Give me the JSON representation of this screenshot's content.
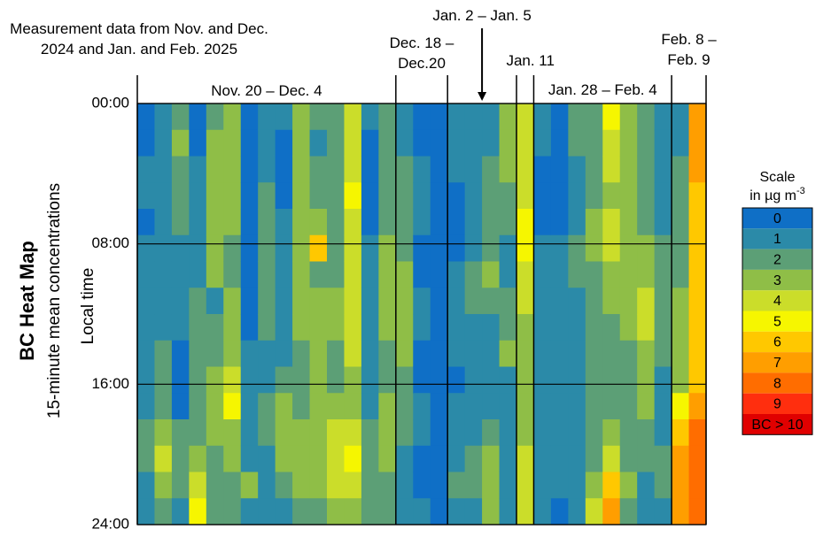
{
  "chart_data": {
    "type": "heatmap",
    "title": "Measurement data from Nov. and Dec. 2024 and Jan. and Feb. 2025",
    "heading": "BC Heat Map",
    "subheading": "15-minute mean concentrations",
    "ylabel": "Local time",
    "ylim": [
      0,
      24
    ],
    "yticks": [
      {
        "value": 0,
        "label": "00:00"
      },
      {
        "value": 8,
        "label": "08:00"
      },
      {
        "value": 16,
        "label": "16:00"
      },
      {
        "value": 24,
        "label": "24:00"
      }
    ],
    "groups": [
      {
        "label": "Nov. 20 – Dec. 4",
        "values": [
          [
            0.5,
            0.5,
            1,
            1,
            0.5,
            1,
            1,
            1,
            1,
            1,
            1.5,
            1.5,
            2,
            2,
            1.5,
            1
          ],
          [
            1,
            1,
            1,
            1.5,
            1.5,
            1,
            1,
            1.5,
            1.5,
            2,
            2,
            2.5,
            3,
            4,
            3,
            2.5
          ],
          [
            2.5,
            3,
            2,
            2,
            2,
            1.5,
            1.5,
            1.5,
            1,
            0.5,
            0.5,
            0.5,
            2,
            2,
            2,
            1.5
          ],
          [
            0.5,
            0.5,
            1,
            1,
            1,
            1.5,
            1.5,
            2,
            2,
            2.5,
            2,
            2,
            2.5,
            3,
            4,
            5
          ],
          [
            2.5,
            3,
            3,
            3,
            3,
            3.5,
            3,
            1.5,
            2,
            2.5,
            3,
            3,
            3,
            2,
            2,
            2
          ],
          [
            3,
            3,
            3.5,
            3.5,
            3,
            2.5,
            2.5,
            3,
            3,
            3,
            4,
            5.5,
            3.5,
            3,
            2.5,
            2
          ],
          [
            0.5,
            0.5,
            0.5,
            0.5,
            0.5,
            0.5,
            0.5,
            0.5,
            0.5,
            1,
            1,
            1,
            1,
            1,
            3,
            1
          ],
          [
            1,
            1.5,
            1.5,
            2,
            2,
            2,
            2,
            2,
            2,
            1.5,
            1.5,
            2,
            2,
            1.5,
            1,
            1
          ],
          [
            1,
            0.5,
            0.5,
            0.5,
            1,
            1,
            1,
            1.5,
            1.5,
            1.5,
            2,
            3,
            3,
            3,
            2,
            1.5
          ],
          [
            3,
            3,
            3,
            3,
            3,
            3.5,
            3.5,
            3.5,
            3,
            2,
            2,
            2.5,
            3,
            3,
            3,
            2
          ],
          [
            2,
            1,
            2,
            2.5,
            3,
            6,
            2.5,
            3,
            3.5,
            3,
            3,
            3,
            3,
            3,
            3,
            2.5
          ],
          [
            2,
            2,
            2,
            2.5,
            2.5,
            2.5,
            2.5,
            3,
            3,
            2.5,
            2.5,
            3.5,
            4,
            4,
            4,
            3
          ],
          [
            4.5,
            4.5,
            4.5,
            5,
            4.5,
            4.5,
            4,
            4,
            4,
            4,
            3.5,
            3.5,
            4,
            5.5,
            4,
            3.5
          ],
          [
            1,
            0.5,
            0.5,
            0.5,
            0.5,
            1,
            1,
            1,
            1,
            1,
            1,
            1.5,
            2,
            2,
            2,
            2
          ],
          [
            2,
            2,
            2,
            2.5,
            2.5,
            3,
            3,
            3.5,
            3,
            2.5,
            2,
            3,
            3.5,
            3,
            2.5,
            2
          ]
        ]
      },
      {
        "label": "Dec. 18 – Dec.20",
        "values": [
          [
            1.5,
            1.5,
            2,
            2,
            2.5,
            2.5,
            3,
            3.5,
            3.5,
            3,
            2.5,
            2,
            2,
            1.5,
            1.5,
            1.5
          ],
          [
            0.5,
            0.5,
            1,
            1,
            1,
            0.5,
            0.5,
            1,
            1,
            0.5,
            0.5,
            1,
            1,
            0.5,
            0.5,
            1
          ],
          [
            0.5,
            0.5,
            0.5,
            0.5,
            0.5,
            0.5,
            0.5,
            0.5,
            0.5,
            0.5,
            0.5,
            0.5,
            0.5,
            0.5,
            0.5,
            0.5
          ]
        ]
      },
      {
        "label": "Jan. 2 – Jan. 5",
        "values": [
          [
            1,
            1,
            1,
            0.5,
            0.5,
            0.5,
            1,
            1,
            1,
            1,
            0.5,
            1,
            1.5,
            1.5,
            2,
            1.5
          ],
          [
            1,
            1,
            1.5,
            1.5,
            1.5,
            1.5,
            2,
            2,
            1.5,
            1,
            1,
            1,
            1,
            2,
            2,
            1
          ],
          [
            1.5,
            1.5,
            2,
            2,
            2.5,
            2.5,
            3,
            2,
            1.5,
            1,
            1,
            1.5,
            2.5,
            3,
            3.5,
            3
          ],
          [
            3,
            3,
            3,
            2,
            2,
            1.5,
            1.5,
            2,
            2,
            3,
            1.5,
            1,
            1,
            1,
            1,
            1.5
          ]
        ]
      },
      {
        "label": "Jan. 11",
        "values": [
          [
            4,
            4.5,
            4,
            4,
            5,
            5,
            4.5,
            4,
            3.5,
            3.5,
            3,
            3,
            3.5,
            4,
            4.5,
            4
          ]
        ]
      },
      {
        "label": "Jan. 28 – Feb. 4",
        "values": [
          [
            1,
            1,
            0.5,
            0.5,
            0.5,
            1,
            1,
            1,
            1,
            1,
            1,
            1,
            1,
            1.5,
            1.5,
            1
          ],
          [
            0.5,
            0.5,
            0.5,
            0.5,
            0.5,
            1,
            1,
            1,
            1.5,
            1.5,
            1,
            1,
            1,
            1,
            1,
            0.5
          ],
          [
            2,
            2,
            1.5,
            1.5,
            1.5,
            2,
            2,
            1.5,
            1.5,
            1.5,
            1,
            1,
            1.5,
            1.5,
            1,
            1
          ],
          [
            2,
            2,
            2,
            2.5,
            3,
            3,
            2.5,
            2.5,
            2,
            2,
            2,
            2,
            2,
            2,
            3,
            4
          ],
          [
            5,
            4.5,
            4,
            3.5,
            4,
            4,
            3.5,
            3,
            2.5,
            2,
            2,
            2,
            3,
            4,
            6.5,
            7
          ],
          [
            3,
            3,
            3,
            3,
            3,
            3,
            3.5,
            3.5,
            3,
            2.5,
            2,
            2,
            2,
            2.5,
            3,
            2
          ],
          [
            2,
            2,
            2,
            2.5,
            2.5,
            3,
            3,
            4,
            4,
            3.5,
            3,
            3,
            2.5,
            2,
            1,
            1.5
          ],
          [
            1.5,
            1.5,
            1,
            1,
            1.5,
            2.5,
            2,
            2,
            2,
            2,
            1.5,
            1,
            1.5,
            2,
            2,
            1.5
          ]
        ]
      },
      {
        "label": "Feb. 8 – Feb. 9",
        "values": [
          [
            1.5,
            1.5,
            2,
            2,
            2.5,
            2.5,
            2.5,
            3,
            3,
            3,
            3,
            5,
            6,
            7,
            7,
            7.5
          ],
          [
            7,
            7.5,
            7,
            6.5,
            6.5,
            6,
            6,
            6,
            6,
            6,
            6,
            7,
            8,
            8.5,
            8,
            8.5
          ]
        ]
      }
    ],
    "scale": {
      "title": "Scale",
      "unit": "in  µg m",
      "unit_sup": "-3",
      "levels": [
        0,
        1,
        2,
        3,
        4,
        5,
        6,
        7,
        8,
        9,
        {
          "value": 10,
          "label": "BC > 10"
        }
      ],
      "colors": [
        "#0f6fc6",
        "#2b8aa8",
        "#5c9f76",
        "#8fbe47",
        "#cbdd2a",
        "#f6f600",
        "#ffc800",
        "#ff9e00",
        "#ff6d00",
        "#ff2e0e",
        "#e00000"
      ]
    }
  }
}
